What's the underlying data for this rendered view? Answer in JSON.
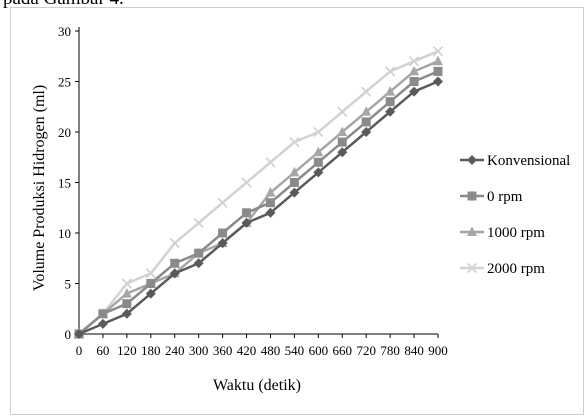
{
  "caption_partial": "pada Gambar 4.",
  "chart_data": {
    "type": "line",
    "xlabel": "Waktu (detik)",
    "ylabel": "Volume Produksi Hidrogen (ml)",
    "x": [
      0,
      60,
      120,
      180,
      240,
      300,
      360,
      420,
      480,
      540,
      600,
      660,
      720,
      780,
      840,
      900
    ],
    "xticks": [
      "0",
      "60",
      "120",
      "180",
      "240",
      "300",
      "360",
      "420",
      "480",
      "540",
      "600",
      "660",
      "720",
      "780",
      "840",
      "900"
    ],
    "ylim": [
      0,
      30
    ],
    "yticks": [
      "0",
      "5",
      "10",
      "15",
      "20",
      "25",
      "30"
    ],
    "grid": false,
    "legend_position": "right",
    "series": [
      {
        "name": "Konvensional",
        "marker": "diamond",
        "color": "#5a5a5a",
        "values": [
          0,
          1,
          2,
          4,
          6,
          7,
          9,
          11,
          12,
          14,
          16,
          18,
          20,
          22,
          24,
          25
        ]
      },
      {
        "name": "0 rpm",
        "marker": "square",
        "color": "#8a8a8a",
        "values": [
          0,
          2,
          3,
          5,
          7,
          8,
          10,
          12,
          13,
          15,
          17,
          19,
          21,
          23,
          25,
          26
        ]
      },
      {
        "name": "1000 rpm",
        "marker": "triangle",
        "color": "#a6a6a6",
        "values": [
          0,
          2,
          4,
          5,
          6,
          8,
          9,
          11,
          14,
          16,
          18,
          20,
          22,
          24,
          26,
          27
        ]
      },
      {
        "name": "2000 rpm",
        "marker": "x",
        "color": "#d2d2d2",
        "values": [
          0,
          2,
          5,
          6,
          9,
          11,
          13,
          15,
          17,
          19,
          20,
          22,
          24,
          26,
          27,
          28
        ]
      }
    ]
  }
}
